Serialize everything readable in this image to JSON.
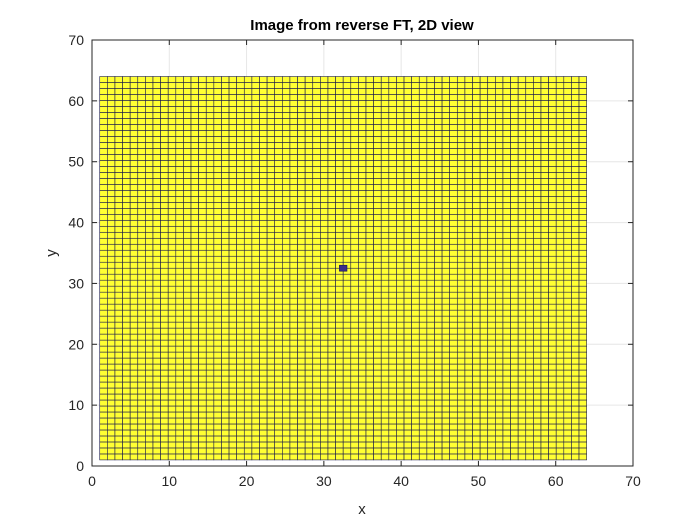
{
  "chart_data": {
    "type": "heatmap",
    "title": "Image from reverse FT, 2D view",
    "xlabel": "x",
    "ylabel": "y",
    "xlim": [
      0,
      70
    ],
    "ylim": [
      0,
      70
    ],
    "xticks": [
      0,
      10,
      20,
      30,
      40,
      50,
      60,
      70
    ],
    "yticks": [
      0,
      10,
      20,
      30,
      40,
      50,
      60,
      70
    ],
    "grid": true,
    "grid_x_range": [
      1,
      64
    ],
    "grid_y_range": [
      1,
      64
    ],
    "cell_count_x": 64,
    "cell_count_y": 64,
    "background_value_color": "#ffff33",
    "cell_edge_color": "#1a1a4d",
    "highlight_cells": [
      {
        "x": 32.5,
        "y": 32.5,
        "color": "#3a2d8a"
      }
    ],
    "colors": {
      "axis": "#262626",
      "gridline": "#e6e6e6"
    }
  }
}
